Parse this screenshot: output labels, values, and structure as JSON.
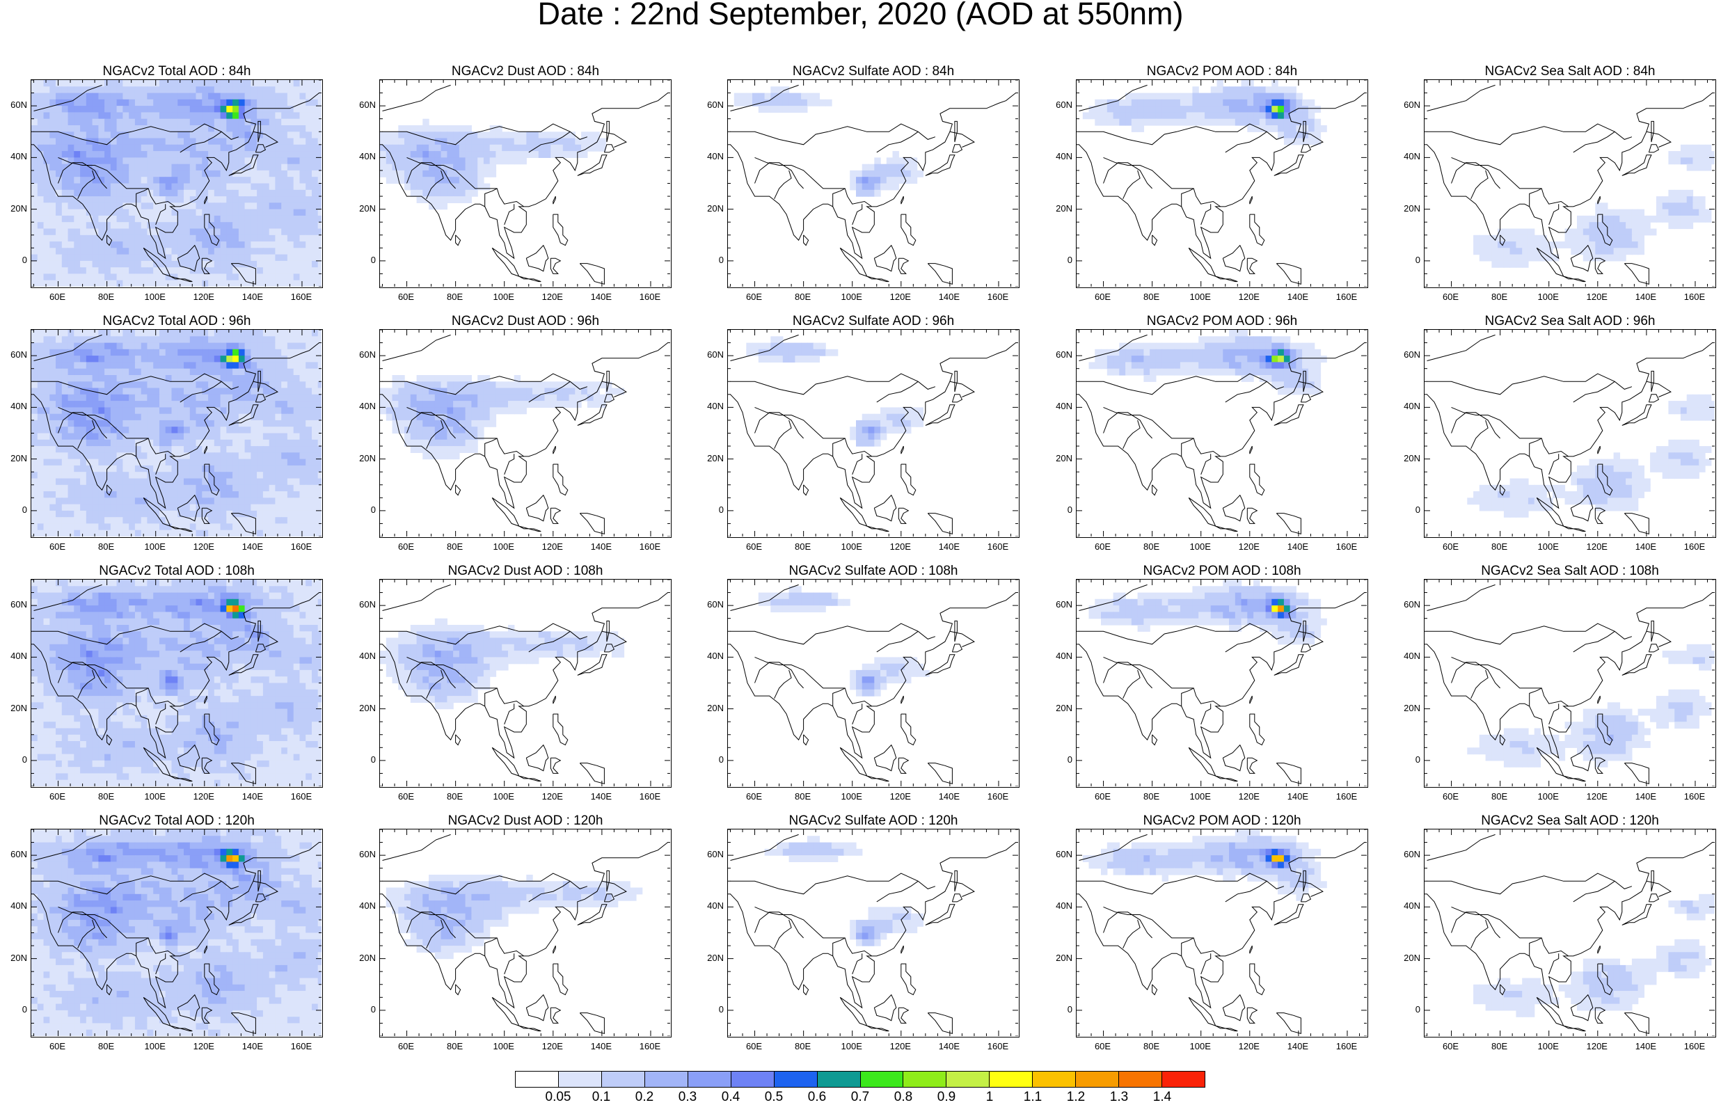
{
  "title": "Date : 22nd September, 2020 (AOD at 550nm)",
  "x_ticks": [
    "60E",
    "80E",
    "100E",
    "120E",
    "140E",
    "160E"
  ],
  "y_ticks": [
    "60N",
    "40N",
    "20N",
    "0"
  ],
  "panels": [
    {
      "title": "NGACv2 Total AOD : 84h",
      "species": "total",
      "hour": 84
    },
    {
      "title": "NGACv2 Dust AOD : 84h",
      "species": "dust",
      "hour": 84
    },
    {
      "title": "NGACv2 Sulfate AOD : 84h",
      "species": "sulfate",
      "hour": 84
    },
    {
      "title": "NGACv2 POM AOD : 84h",
      "species": "pom",
      "hour": 84
    },
    {
      "title": "NGACv2 Sea Salt AOD : 84h",
      "species": "seasalt",
      "hour": 84
    },
    {
      "title": "NGACv2 Total AOD : 96h",
      "species": "total",
      "hour": 96
    },
    {
      "title": "NGACv2 Dust AOD : 96h",
      "species": "dust",
      "hour": 96
    },
    {
      "title": "NGACv2 Sulfate AOD : 96h",
      "species": "sulfate",
      "hour": 96
    },
    {
      "title": "NGACv2 POM AOD : 96h",
      "species": "pom",
      "hour": 96
    },
    {
      "title": "NGACv2 Sea Salt AOD : 96h",
      "species": "seasalt",
      "hour": 96
    },
    {
      "title": "NGACv2 Total AOD : 108h",
      "species": "total",
      "hour": 108
    },
    {
      "title": "NGACv2 Dust AOD : 108h",
      "species": "dust",
      "hour": 108
    },
    {
      "title": "NGACv2 Sulfate AOD : 108h",
      "species": "sulfate",
      "hour": 108
    },
    {
      "title": "NGACv2 POM AOD : 108h",
      "species": "pom",
      "hour": 108
    },
    {
      "title": "NGACv2 Sea Salt AOD : 108h",
      "species": "seasalt",
      "hour": 108
    },
    {
      "title": "NGACv2 Total AOD : 120h",
      "species": "total",
      "hour": 120
    },
    {
      "title": "NGACv2 Dust AOD : 120h",
      "species": "dust",
      "hour": 120
    },
    {
      "title": "NGACv2 Sulfate AOD : 120h",
      "species": "sulfate",
      "hour": 120
    },
    {
      "title": "NGACv2 POM AOD : 120h",
      "species": "pom",
      "hour": 120
    },
    {
      "title": "NGACv2 Sea Salt  AOD : 120h",
      "species": "seasalt",
      "hour": 120
    }
  ],
  "colorbar": {
    "labels": [
      "0.05",
      "0.1",
      "0.2",
      "0.3",
      "0.4",
      "0.5",
      "0.6",
      "0.7",
      "0.8",
      "0.9",
      "1",
      "1.1",
      "1.2",
      "1.3",
      "1.4"
    ],
    "colors": [
      "#ffffff",
      "#dce4fb",
      "#bfcdf9",
      "#a2b5f8",
      "#8a9ff7",
      "#6e82f5",
      "#1d63f0",
      "#0f9a93",
      "#3ce81c",
      "#8fec1a",
      "#c4f046",
      "#ffff10",
      "#fbc100",
      "#f79c00",
      "#f77400",
      "#fa2308"
    ]
  }
}
